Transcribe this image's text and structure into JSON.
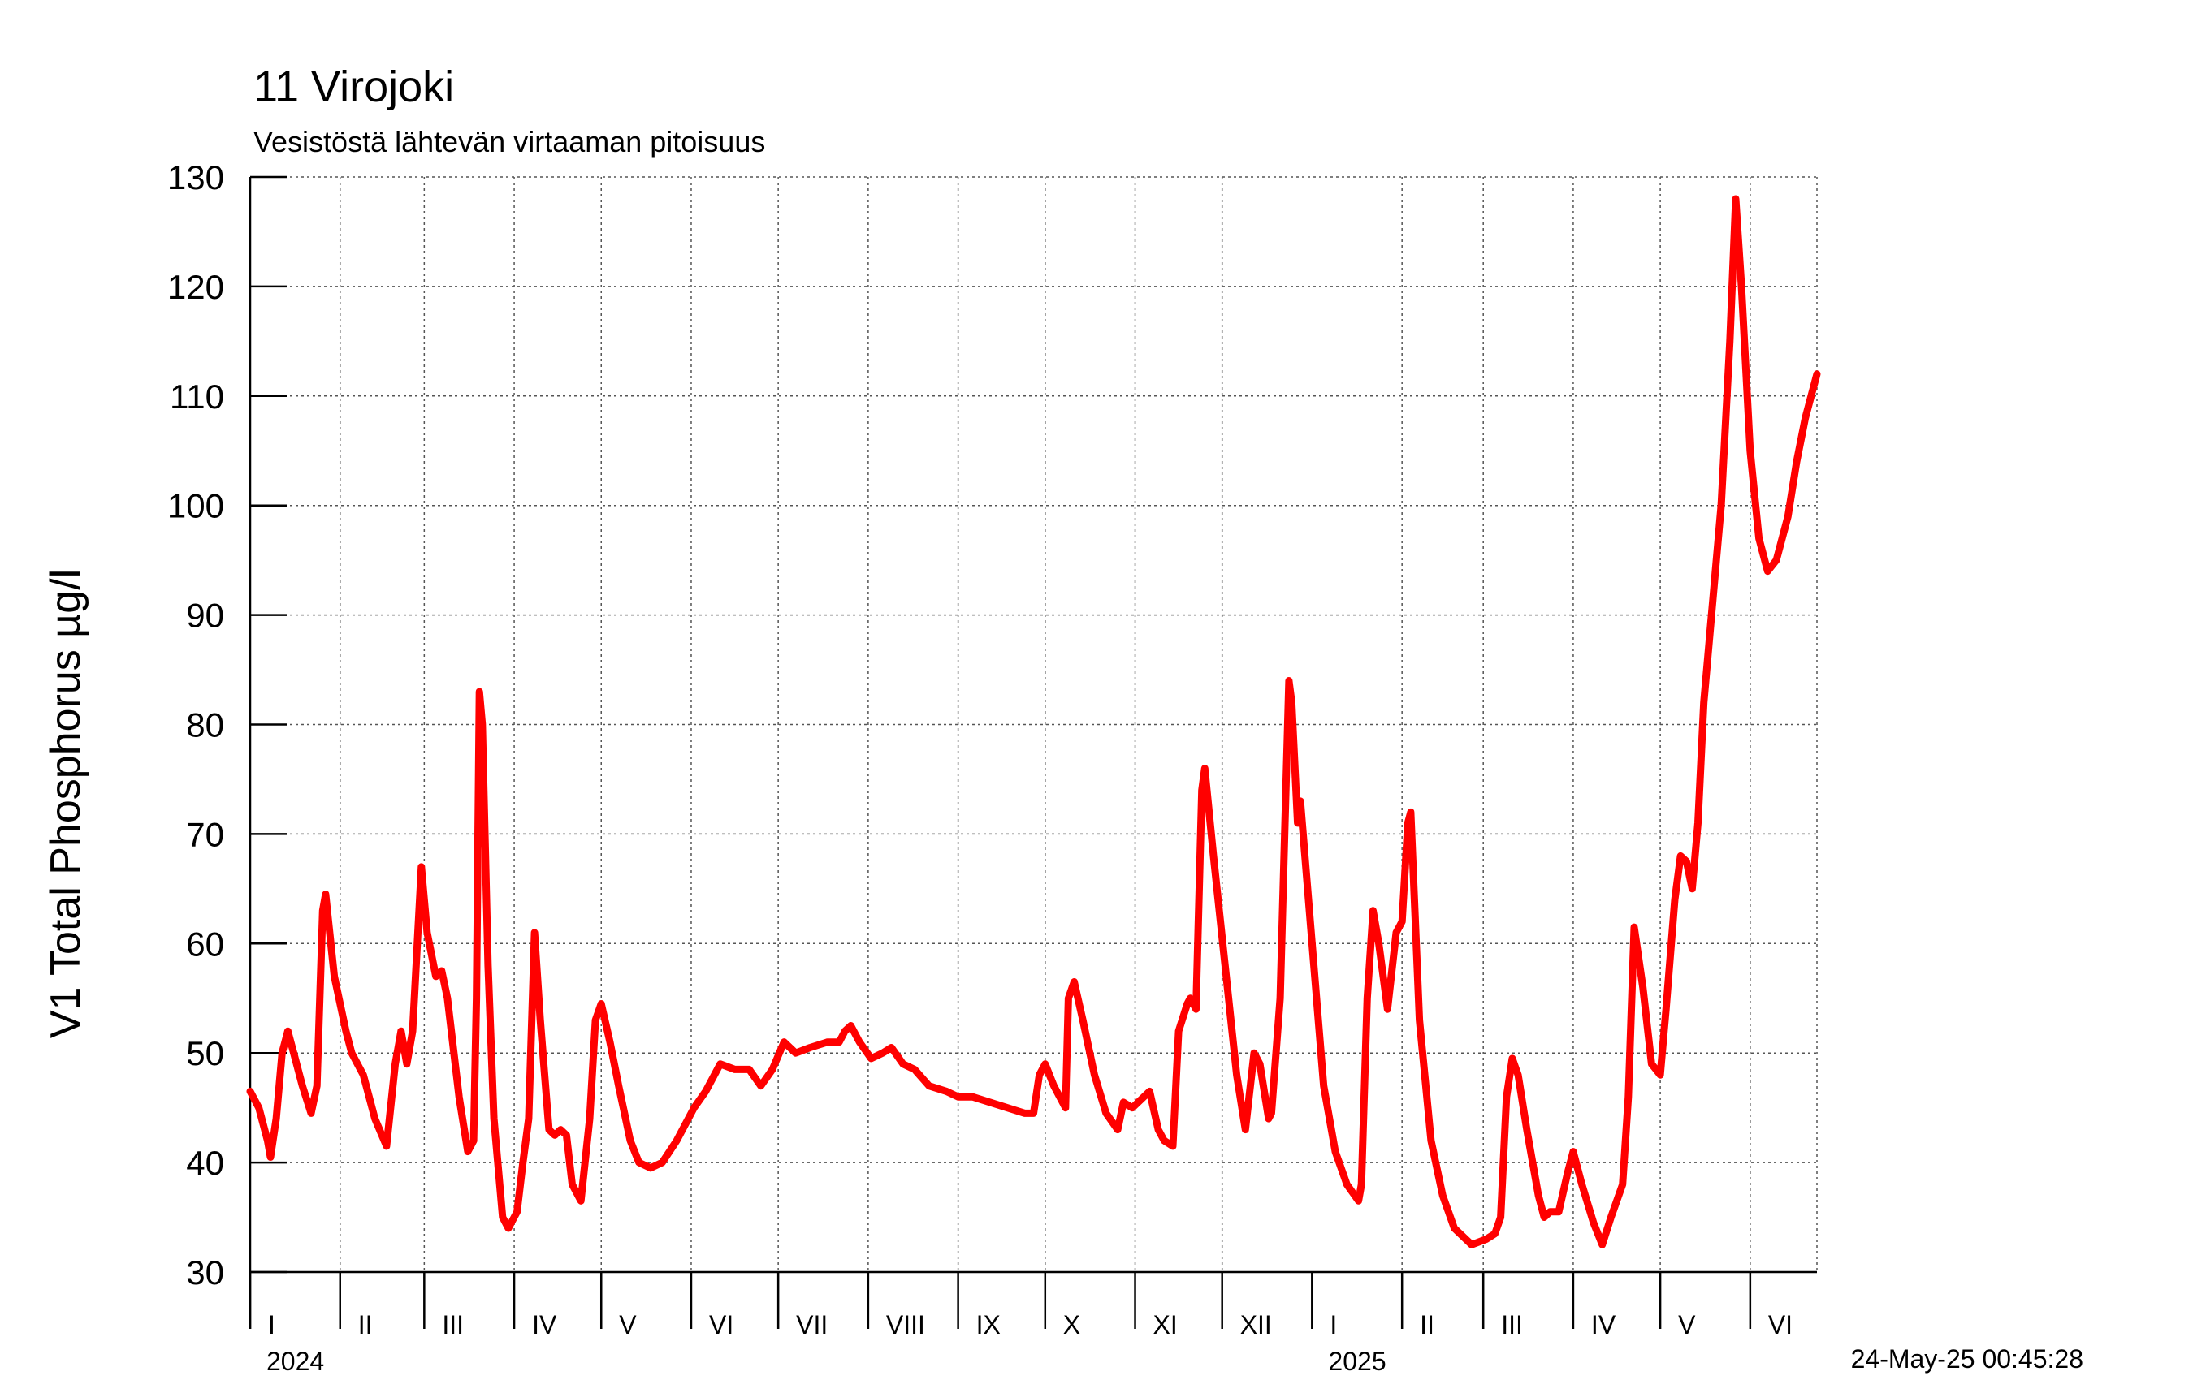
{
  "header": {
    "title": "11 Virojoki",
    "subtitle": "Vesistöstä lähtevän virtaaman pitoisuus"
  },
  "timestamp": "24-May-25 00:45:28",
  "chart_data": {
    "type": "line",
    "title": "11 Virojoki",
    "subtitle": "Vesistöstä lähtevän virtaaman pitoisuus",
    "ylabel": "V1 Total Phosphorus µg/l",
    "xlabel": "",
    "ylim": [
      30,
      130
    ],
    "yticks": [
      30,
      40,
      50,
      60,
      70,
      80,
      90,
      100,
      110,
      120,
      130
    ],
    "xlim": [
      "2024-01-01",
      "2025-06-24"
    ],
    "grid": true,
    "line_color": "#ff0000",
    "month_labels": [
      "I",
      "II",
      "III",
      "IV",
      "V",
      "VI",
      "VII",
      "VIII",
      "IX",
      "X",
      "XI",
      "XII",
      "I",
      "II",
      "III",
      "IV",
      "V",
      "VI"
    ],
    "month_starts": [
      "2024-01-01",
      "2024-02-01",
      "2024-03-01",
      "2024-04-01",
      "2024-05-01",
      "2024-06-01",
      "2024-07-01",
      "2024-08-01",
      "2024-09-01",
      "2024-10-01",
      "2024-11-01",
      "2024-12-01",
      "2025-01-01",
      "2025-02-01",
      "2025-03-01",
      "2025-04-01",
      "2025-05-01",
      "2025-06-01"
    ],
    "year_labels": [
      {
        "label": "2024",
        "date": "2024-01-01"
      },
      {
        "label": "2025",
        "date": "2025-01-01"
      }
    ],
    "series": [
      {
        "color": "#ff0000",
        "points": [
          [
            "2024-01-01",
            46.5
          ],
          [
            "2024-01-04",
            45
          ],
          [
            "2024-01-07",
            42
          ],
          [
            "2024-01-08",
            40.5
          ],
          [
            "2024-01-10",
            44
          ],
          [
            "2024-01-12",
            50
          ],
          [
            "2024-01-14",
            52
          ],
          [
            "2024-01-16",
            50
          ],
          [
            "2024-01-19",
            47
          ],
          [
            "2024-01-22",
            44.5
          ],
          [
            "2024-01-24",
            47
          ],
          [
            "2024-01-26",
            63
          ],
          [
            "2024-01-27",
            64.5
          ],
          [
            "2024-01-30",
            57
          ],
          [
            "2024-02-03",
            52
          ],
          [
            "2024-02-05",
            50
          ],
          [
            "2024-02-09",
            48
          ],
          [
            "2024-02-13",
            44
          ],
          [
            "2024-02-17",
            41.5
          ],
          [
            "2024-02-20",
            49
          ],
          [
            "2024-02-22",
            52
          ],
          [
            "2024-02-24",
            49
          ],
          [
            "2024-02-26",
            52
          ],
          [
            "2024-02-29",
            67
          ],
          [
            "2024-03-02",
            61
          ],
          [
            "2024-03-05",
            57
          ],
          [
            "2024-03-07",
            57.5
          ],
          [
            "2024-03-09",
            55
          ],
          [
            "2024-03-13",
            46
          ],
          [
            "2024-03-16",
            41
          ],
          [
            "2024-03-18",
            42
          ],
          [
            "2024-03-19",
            55
          ],
          [
            "2024-03-20",
            83
          ],
          [
            "2024-03-21",
            80
          ],
          [
            "2024-03-23",
            58
          ],
          [
            "2024-03-25",
            44
          ],
          [
            "2024-03-28",
            35
          ],
          [
            "2024-03-30",
            34
          ],
          [
            "2024-04-02",
            35.5
          ],
          [
            "2024-04-04",
            40
          ],
          [
            "2024-04-06",
            44
          ],
          [
            "2024-04-08",
            61
          ],
          [
            "2024-04-10",
            53
          ],
          [
            "2024-04-13",
            43
          ],
          [
            "2024-04-15",
            42.5
          ],
          [
            "2024-04-17",
            43
          ],
          [
            "2024-04-19",
            42.5
          ],
          [
            "2024-04-21",
            38
          ],
          [
            "2024-04-24",
            36.5
          ],
          [
            "2024-04-27",
            44
          ],
          [
            "2024-04-29",
            53
          ],
          [
            "2024-05-01",
            54.5
          ],
          [
            "2024-05-04",
            51
          ],
          [
            "2024-05-07",
            47
          ],
          [
            "2024-05-11",
            42
          ],
          [
            "2024-05-14",
            40
          ],
          [
            "2024-05-18",
            39.5
          ],
          [
            "2024-05-22",
            40
          ],
          [
            "2024-05-27",
            42
          ],
          [
            "2024-06-02",
            45
          ],
          [
            "2024-06-06",
            46.5
          ],
          [
            "2024-06-11",
            49
          ],
          [
            "2024-06-16",
            48.5
          ],
          [
            "2024-06-21",
            48.5
          ],
          [
            "2024-06-25",
            47
          ],
          [
            "2024-06-29",
            48.5
          ],
          [
            "2024-07-03",
            51
          ],
          [
            "2024-07-07",
            50
          ],
          [
            "2024-07-12",
            50.5
          ],
          [
            "2024-07-18",
            51
          ],
          [
            "2024-07-22",
            51
          ],
          [
            "2024-07-24",
            52
          ],
          [
            "2024-07-26",
            52.5
          ],
          [
            "2024-07-29",
            51
          ],
          [
            "2024-08-02",
            49.5
          ],
          [
            "2024-08-06",
            50
          ],
          [
            "2024-08-09",
            50.5
          ],
          [
            "2024-08-13",
            49
          ],
          [
            "2024-08-17",
            48.5
          ],
          [
            "2024-08-22",
            47
          ],
          [
            "2024-08-28",
            46.5
          ],
          [
            "2024-09-01",
            46
          ],
          [
            "2024-09-06",
            46
          ],
          [
            "2024-09-12",
            45.5
          ],
          [
            "2024-09-18",
            45
          ],
          [
            "2024-09-24",
            44.5
          ],
          [
            "2024-09-27",
            44.5
          ],
          [
            "2024-09-29",
            48
          ],
          [
            "2024-10-01",
            49
          ],
          [
            "2024-10-04",
            47
          ],
          [
            "2024-10-08",
            45
          ],
          [
            "2024-10-09",
            55
          ],
          [
            "2024-10-11",
            56.5
          ],
          [
            "2024-10-14",
            53
          ],
          [
            "2024-10-18",
            48
          ],
          [
            "2024-10-22",
            44.5
          ],
          [
            "2024-10-26",
            43
          ],
          [
            "2024-10-28",
            45.5
          ],
          [
            "2024-10-31",
            45
          ],
          [
            "2024-11-04",
            46
          ],
          [
            "2024-11-06",
            46.5
          ],
          [
            "2024-11-09",
            43
          ],
          [
            "2024-11-11",
            42
          ],
          [
            "2024-11-14",
            41.5
          ],
          [
            "2024-11-16",
            52
          ],
          [
            "2024-11-19",
            54.5
          ],
          [
            "2024-11-20",
            55
          ],
          [
            "2024-11-22",
            54
          ],
          [
            "2024-11-24",
            74
          ],
          [
            "2024-11-25",
            76
          ],
          [
            "2024-11-28",
            68
          ],
          [
            "2024-12-02",
            58
          ],
          [
            "2024-12-06",
            48
          ],
          [
            "2024-12-09",
            43
          ],
          [
            "2024-12-12",
            50
          ],
          [
            "2024-12-14",
            49
          ],
          [
            "2024-12-17",
            44
          ],
          [
            "2024-12-18",
            44.5
          ],
          [
            "2024-12-21",
            55
          ],
          [
            "2024-12-24",
            84
          ],
          [
            "2024-12-25",
            82
          ],
          [
            "2024-12-27",
            71
          ],
          [
            "2024-12-28",
            73
          ],
          [
            "2025-01-01",
            60
          ],
          [
            "2025-01-05",
            47
          ],
          [
            "2025-01-09",
            41
          ],
          [
            "2025-01-13",
            38
          ],
          [
            "2025-01-17",
            36.5
          ],
          [
            "2025-01-18",
            38
          ],
          [
            "2025-01-20",
            55
          ],
          [
            "2025-01-22",
            63
          ],
          [
            "2025-01-24",
            60
          ],
          [
            "2025-01-27",
            54
          ],
          [
            "2025-01-30",
            61
          ],
          [
            "2025-02-01",
            62
          ],
          [
            "2025-02-03",
            71
          ],
          [
            "2025-02-04",
            72
          ],
          [
            "2025-02-07",
            53
          ],
          [
            "2025-02-11",
            42
          ],
          [
            "2025-02-15",
            37
          ],
          [
            "2025-02-19",
            34
          ],
          [
            "2025-02-25",
            32.5
          ],
          [
            "2025-03-02",
            33
          ],
          [
            "2025-03-05",
            33.5
          ],
          [
            "2025-03-07",
            35
          ],
          [
            "2025-03-09",
            46
          ],
          [
            "2025-03-11",
            49.5
          ],
          [
            "2025-03-13",
            48
          ],
          [
            "2025-03-16",
            43
          ],
          [
            "2025-03-20",
            37
          ],
          [
            "2025-03-22",
            35
          ],
          [
            "2025-03-24",
            35.5
          ],
          [
            "2025-03-27",
            35.5
          ],
          [
            "2025-03-30",
            39
          ],
          [
            "2025-04-01",
            41
          ],
          [
            "2025-04-04",
            38
          ],
          [
            "2025-04-08",
            34.5
          ],
          [
            "2025-04-11",
            32.5
          ],
          [
            "2025-04-14",
            35
          ],
          [
            "2025-04-18",
            38
          ],
          [
            "2025-04-20",
            46
          ],
          [
            "2025-04-22",
            61.5
          ],
          [
            "2025-04-25",
            56
          ],
          [
            "2025-04-28",
            49
          ],
          [
            "2025-05-01",
            48
          ],
          [
            "2025-05-03",
            54
          ],
          [
            "2025-05-06",
            64
          ],
          [
            "2025-05-08",
            68
          ],
          [
            "2025-05-10",
            67.5
          ],
          [
            "2025-05-12",
            65
          ],
          [
            "2025-05-14",
            71
          ],
          [
            "2025-05-16",
            82
          ],
          [
            "2025-05-19",
            91
          ],
          [
            "2025-05-22",
            100
          ],
          [
            "2025-05-25",
            115
          ],
          [
            "2025-05-27",
            128
          ],
          [
            "2025-05-29",
            120
          ],
          [
            "2025-06-01",
            105
          ],
          [
            "2025-06-04",
            97
          ],
          [
            "2025-06-07",
            94
          ],
          [
            "2025-06-10",
            95
          ],
          [
            "2025-06-14",
            99
          ],
          [
            "2025-06-17",
            104
          ],
          [
            "2025-06-20",
            108
          ],
          [
            "2025-06-24",
            112
          ]
        ]
      }
    ]
  }
}
